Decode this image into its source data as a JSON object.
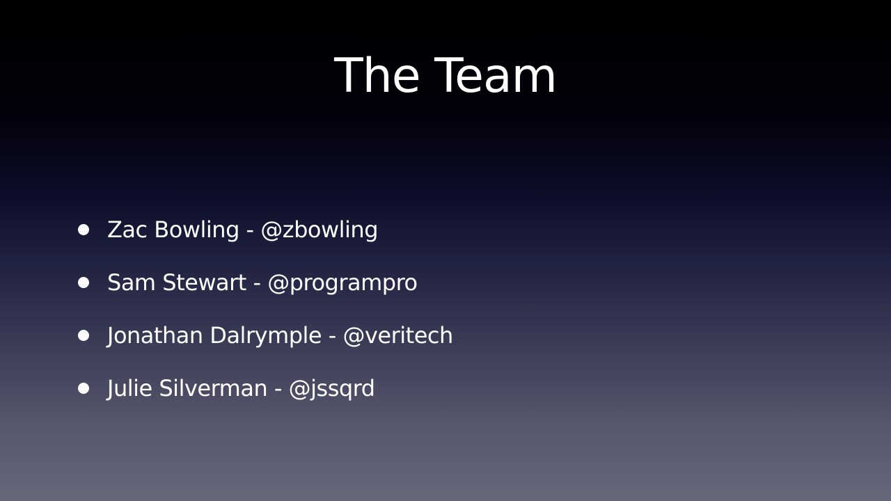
{
  "slide": {
    "title": "The Team",
    "bullets": [
      {
        "text": "Zac Bowling - @zbowling"
      },
      {
        "text": "Sam Stewart - @programpro"
      },
      {
        "text": "Jonathan Dalrymple - @veritech"
      },
      {
        "text": "Julie Silverman - @jssqrd"
      }
    ]
  }
}
